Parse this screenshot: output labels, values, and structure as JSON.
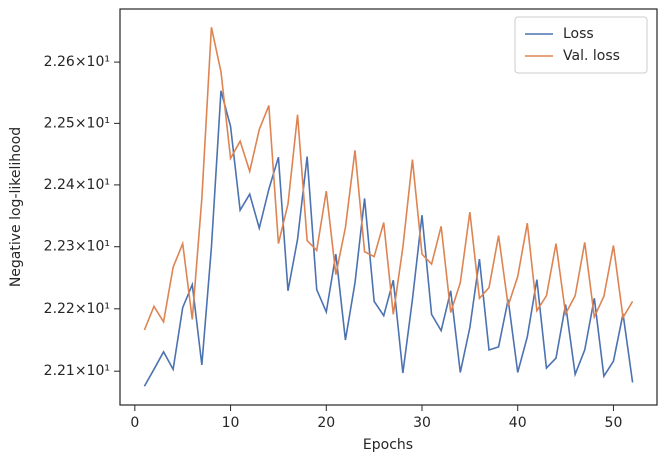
{
  "chart_data": {
    "type": "line",
    "xlabel": "Epochs",
    "ylabel": "Negative log-likelihood",
    "x": [
      1,
      2,
      3,
      4,
      5,
      6,
      7,
      8,
      9,
      10,
      11,
      12,
      13,
      14,
      15,
      16,
      17,
      18,
      19,
      20,
      21,
      22,
      23,
      24,
      25,
      26,
      27,
      28,
      29,
      30,
      31,
      32,
      33,
      34,
      35,
      36,
      37,
      38,
      39,
      40,
      41,
      42,
      43,
      44,
      45,
      46,
      47,
      48,
      49,
      50,
      51,
      52
    ],
    "series": [
      {
        "name": "Loss",
        "color": "#4c72b0",
        "values": [
          22.076,
          22.103,
          22.131,
          22.103,
          22.202,
          22.239,
          22.11,
          22.299,
          22.553,
          22.495,
          22.359,
          22.385,
          22.33,
          22.393,
          22.445,
          22.229,
          22.312,
          22.446,
          22.231,
          22.195,
          22.288,
          22.15,
          22.242,
          22.378,
          22.212,
          22.189,
          22.246,
          22.097,
          22.215,
          22.351,
          22.191,
          22.165,
          22.229,
          22.098,
          22.17,
          22.28,
          22.134,
          22.139,
          22.215,
          22.098,
          22.155,
          22.247,
          22.105,
          22.121,
          22.207,
          22.095,
          22.134,
          22.217,
          22.092,
          22.116,
          22.192,
          22.082
        ]
      },
      {
        "name": "Val. loss",
        "color": "#dd8452",
        "values": [
          22.166,
          22.204,
          22.179,
          22.267,
          22.305,
          22.183,
          22.378,
          22.657,
          22.584,
          22.443,
          22.471,
          22.422,
          22.49,
          22.529,
          22.305,
          22.369,
          22.514,
          22.31,
          22.294,
          22.39,
          22.255,
          22.331,
          22.456,
          22.292,
          22.284,
          22.339,
          22.191,
          22.299,
          22.441,
          22.288,
          22.272,
          22.333,
          22.194,
          22.242,
          22.356,
          22.217,
          22.234,
          22.318,
          22.205,
          22.252,
          22.338,
          22.197,
          22.221,
          22.305,
          22.192,
          22.221,
          22.307,
          22.187,
          22.22,
          22.302,
          22.186,
          22.212
        ]
      }
    ],
    "xlim": [
      -1.55,
      54.55
    ],
    "xticks": [
      0,
      10,
      20,
      30,
      40,
      50
    ],
    "ylim": [
      22.046,
      22.687
    ],
    "yscale": "log",
    "yticks": [
      {
        "value": 22.1,
        "label": "2.21×10¹"
      },
      {
        "value": 22.2,
        "label": "2.22×10¹"
      },
      {
        "value": 22.3,
        "label": "2.23×10¹"
      },
      {
        "value": 22.4,
        "label": "2.24×10¹"
      },
      {
        "value": 22.5,
        "label": "2.25×10¹"
      },
      {
        "value": 22.6,
        "label": "2.26×10¹"
      }
    ],
    "legend": "upper right"
  }
}
